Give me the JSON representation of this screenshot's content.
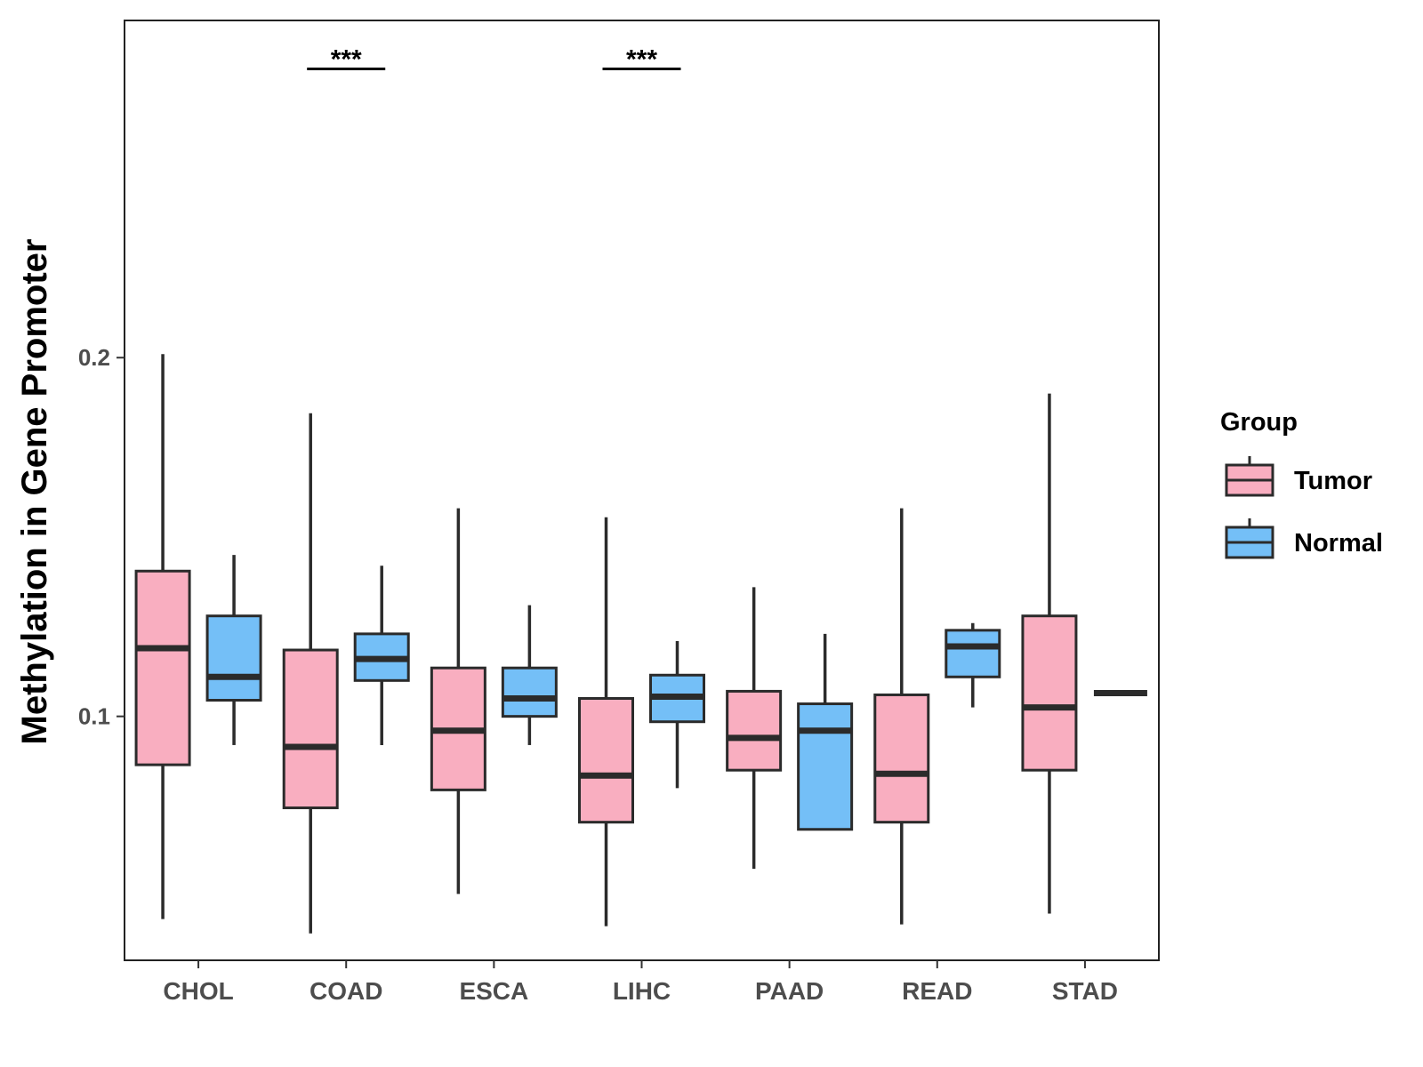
{
  "chart_data": {
    "type": "boxplot",
    "title": "",
    "xlabel": "",
    "ylabel": "Methylation in Gene Promoter",
    "ylim": [
      0.032,
      0.294
    ],
    "yticks": [
      0.1,
      0.2
    ],
    "ytick_labels": [
      "0.1",
      "0.2"
    ],
    "categories": [
      "CHOL",
      "COAD",
      "ESCA",
      "LIHC",
      "PAAD",
      "READ",
      "STAD"
    ],
    "legend": {
      "title": "Group",
      "position": "right",
      "entries": [
        {
          "name": "Tumor",
          "color": "#F9AEC0"
        },
        {
          "name": "Normal",
          "color": "#74BFF7"
        }
      ]
    },
    "series": [
      {
        "name": "Tumor",
        "color": "#F9AEC0",
        "boxes": [
          {
            "category": "CHOL",
            "whisker_low": 0.0435,
            "q1": 0.0865,
            "median": 0.119,
            "q3": 0.1405,
            "whisker_high": 0.201
          },
          {
            "category": "COAD",
            "whisker_low": 0.0395,
            "q1": 0.0745,
            "median": 0.0915,
            "q3": 0.1185,
            "whisker_high": 0.1845
          },
          {
            "category": "ESCA",
            "whisker_low": 0.0505,
            "q1": 0.0795,
            "median": 0.096,
            "q3": 0.1135,
            "whisker_high": 0.158
          },
          {
            "category": "LIHC",
            "whisker_low": 0.0415,
            "q1": 0.0705,
            "median": 0.0835,
            "q3": 0.105,
            "whisker_high": 0.1555
          },
          {
            "category": "PAAD",
            "whisker_low": 0.0575,
            "q1": 0.085,
            "median": 0.094,
            "q3": 0.107,
            "whisker_high": 0.136
          },
          {
            "category": "READ",
            "whisker_low": 0.042,
            "q1": 0.0705,
            "median": 0.084,
            "q3": 0.106,
            "whisker_high": 0.158
          },
          {
            "category": "STAD",
            "whisker_low": 0.045,
            "q1": 0.085,
            "median": 0.1025,
            "q3": 0.128,
            "whisker_high": 0.19
          }
        ]
      },
      {
        "name": "Normal",
        "color": "#74BFF7",
        "boxes": [
          {
            "category": "CHOL",
            "whisker_low": 0.092,
            "q1": 0.1045,
            "median": 0.111,
            "q3": 0.128,
            "whisker_high": 0.145
          },
          {
            "category": "COAD",
            "whisker_low": 0.092,
            "q1": 0.11,
            "median": 0.116,
            "q3": 0.123,
            "whisker_high": 0.142
          },
          {
            "category": "ESCA",
            "whisker_low": 0.092,
            "q1": 0.1,
            "median": 0.105,
            "q3": 0.1135,
            "whisker_high": 0.131
          },
          {
            "category": "LIHC",
            "whisker_low": 0.08,
            "q1": 0.0985,
            "median": 0.1055,
            "q3": 0.1115,
            "whisker_high": 0.121
          },
          {
            "category": "PAAD",
            "whisker_low": 0.0685,
            "q1": 0.0685,
            "median": 0.096,
            "q3": 0.1035,
            "whisker_high": 0.123
          },
          {
            "category": "READ",
            "whisker_low": 0.1025,
            "q1": 0.111,
            "median": 0.1195,
            "q3": 0.124,
            "whisker_high": 0.126
          },
          {
            "category": "STAD",
            "whisker_low": 0.1065,
            "q1": 0.1065,
            "median": 0.1065,
            "q3": 0.1065,
            "whisker_high": 0.1065
          }
        ]
      }
    ],
    "annotations": [
      {
        "category": "COAD",
        "text": "***",
        "y": 0.2805
      },
      {
        "category": "LIHC",
        "text": "***",
        "y": 0.2805
      }
    ]
  }
}
